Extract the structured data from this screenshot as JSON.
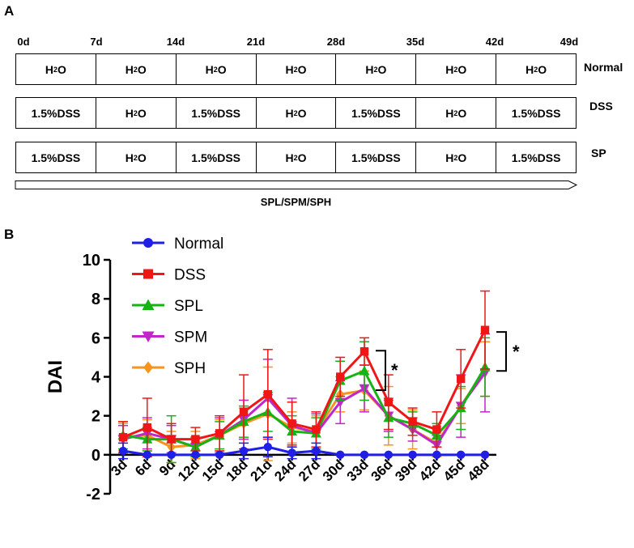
{
  "panel_a": {
    "label": "A",
    "days": [
      "0d",
      "7d",
      "14d",
      "21d",
      "28d",
      "35d",
      "42d",
      "49d"
    ],
    "rows": [
      {
        "name": "Normal",
        "cells": [
          "H2O",
          "H2O",
          "H2O",
          "H2O",
          "H2O",
          "H2O",
          "H2O"
        ]
      },
      {
        "name": "DSS",
        "cells": [
          "1.5%DSS",
          "H2O",
          "1.5%DSS",
          "H2O",
          "1.5%DSS",
          "H2O",
          "1.5%DSS"
        ]
      },
      {
        "name": "SP",
        "cells": [
          "1.5%DSS",
          "H2O",
          "1.5%DSS",
          "H2O",
          "1.5%DSS",
          "H2O",
          "1.5%DSS"
        ]
      }
    ],
    "arrow_label": "SPL/SPM/SPH"
  },
  "panel_b": {
    "label": "B"
  },
  "chart_data": {
    "type": "line",
    "ylabel": "DAI",
    "ylim": [
      -2,
      10
    ],
    "yticks": [
      -2,
      0,
      2,
      4,
      6,
      8,
      10
    ],
    "x": [
      "3d",
      "6d",
      "9d",
      "12d",
      "15d",
      "18d",
      "21d",
      "24d",
      "27d",
      "30d",
      "33d",
      "36d",
      "39d",
      "42d",
      "45d",
      "48d"
    ],
    "legend_position": "top-left",
    "series": [
      {
        "name": "Normal",
        "color": "#1f1fe6",
        "marker": "circle",
        "values": [
          0.2,
          0,
          0,
          0,
          0,
          0.2,
          0.4,
          0.1,
          0.2,
          0,
          0,
          0,
          0,
          0,
          0,
          0
        ],
        "errors": [
          0.4,
          0,
          0,
          0,
          0,
          0.4,
          0.5,
          0.3,
          0.4,
          0,
          0,
          0,
          0,
          0,
          0,
          0
        ]
      },
      {
        "name": "DSS",
        "color": "#f01616",
        "marker": "square",
        "values": [
          0.9,
          1.4,
          0.8,
          0.8,
          1.1,
          2.2,
          3.1,
          1.6,
          1.3,
          4.0,
          5.3,
          2.7,
          1.7,
          1.3,
          3.9,
          6.4
        ],
        "errors": [
          0.8,
          1.5,
          0.8,
          0.6,
          0.9,
          1.9,
          2.3,
          1.1,
          0.9,
          1.0,
          0.7,
          1.4,
          0.7,
          0.9,
          1.5,
          2.0
        ]
      },
      {
        "name": "SPL",
        "color": "#16b316",
        "marker": "triangle-up",
        "values": [
          1.0,
          0.8,
          0.8,
          0.4,
          1.0,
          1.7,
          2.2,
          1.2,
          1.1,
          3.8,
          4.3,
          1.9,
          1.6,
          1.0,
          2.4,
          4.5
        ],
        "errors": [
          0.7,
          0.6,
          1.2,
          0.5,
          0.7,
          0.8,
          1.0,
          0.8,
          0.8,
          1.0,
          1.5,
          1.0,
          0.6,
          0.6,
          1.1,
          1.5
        ]
      },
      {
        "name": "SPM",
        "color": "#c026c9",
        "marker": "triangle-down",
        "values": [
          0.8,
          1.1,
          0.8,
          0.4,
          1.0,
          1.8,
          2.9,
          1.5,
          1.1,
          2.7,
          3.4,
          2.0,
          1.3,
          0.5,
          2.5,
          4.2
        ],
        "errors": [
          0.7,
          0.8,
          0.7,
          0.5,
          0.9,
          1.0,
          2.0,
          1.4,
          1.0,
          1.1,
          1.2,
          0.8,
          0.6,
          0.5,
          1.6,
          2.0
        ]
      },
      {
        "name": "SPH",
        "color": "#f7931e",
        "marker": "diamond",
        "values": [
          0.9,
          1.0,
          0.4,
          0.5,
          1.0,
          1.6,
          2.1,
          1.4,
          1.2,
          3.1,
          3.3,
          2.0,
          1.3,
          0.6,
          2.5,
          4.4
        ],
        "errors": [
          0.7,
          0.8,
          0.8,
          0.7,
          0.8,
          0.8,
          2.4,
          0.8,
          0.8,
          0.9,
          1.0,
          1.5,
          1.0,
          0.7,
          0.9,
          1.4
        ]
      }
    ],
    "annotations": [
      {
        "text": "*",
        "between": [
          "DSS",
          "SPM"
        ],
        "at": "33d"
      },
      {
        "text": "*",
        "between": [
          "DSS",
          "SPM"
        ],
        "at": "48d"
      }
    ]
  }
}
